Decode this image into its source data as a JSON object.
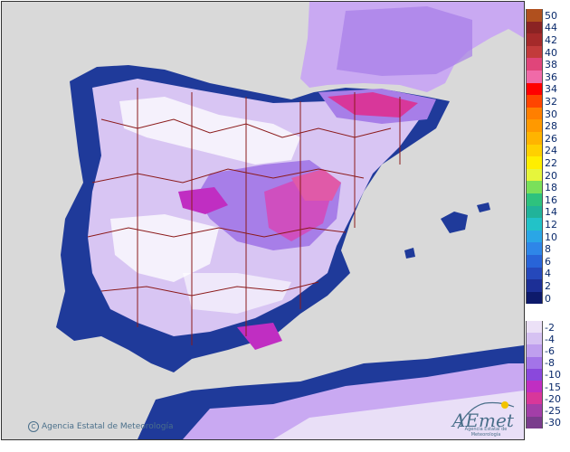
{
  "credit": {
    "text": "Agencia Estatal de Meteorología",
    "icon": "copyright-icon"
  },
  "logo": {
    "wordmark": "AEmet",
    "caption": "Agencia Estatal de Meteorología"
  },
  "legend_upper": [
    {
      "label": "50",
      "color": "#b0501e"
    },
    {
      "label": "44",
      "color": "#8b2323"
    },
    {
      "label": "42",
      "color": "#a52a2a"
    },
    {
      "label": "40",
      "color": "#c23b3b"
    },
    {
      "label": "38",
      "color": "#e0457a"
    },
    {
      "label": "36",
      "color": "#f06aa8"
    },
    {
      "label": "34",
      "color": "#ff0000"
    },
    {
      "label": "32",
      "color": "#ff4500"
    },
    {
      "label": "30",
      "color": "#ff7f00"
    },
    {
      "label": "28",
      "color": "#ff9900"
    },
    {
      "label": "26",
      "color": "#ffb400"
    },
    {
      "label": "24",
      "color": "#ffd000"
    },
    {
      "label": "22",
      "color": "#ffee00"
    },
    {
      "label": "20",
      "color": "#e6f53c"
    },
    {
      "label": "18",
      "color": "#7ae05a"
    },
    {
      "label": "16",
      "color": "#2ec27e"
    },
    {
      "label": "14",
      "color": "#21b39a"
    },
    {
      "label": "12",
      "color": "#22c2c8"
    },
    {
      "label": "10",
      "color": "#2aa6e6"
    },
    {
      "label": "8",
      "color": "#2e86e8"
    },
    {
      "label": "6",
      "color": "#2864d8"
    },
    {
      "label": "4",
      "color": "#2548bb"
    },
    {
      "label": "2",
      "color": "#1c2f96"
    },
    {
      "label": "0",
      "color": "#0d1a6b"
    }
  ],
  "legend_lower": [
    {
      "label": "-2",
      "color": "#ece1f7"
    },
    {
      "label": "-4",
      "color": "#d6c2f2"
    },
    {
      "label": "-6",
      "color": "#bf9fee"
    },
    {
      "label": "-8",
      "color": "#a374e8"
    },
    {
      "label": "-10",
      "color": "#8a48dc"
    },
    {
      "label": "-15",
      "color": "#c02ec2"
    },
    {
      "label": "-20",
      "color": "#d8379a"
    },
    {
      "label": "-25",
      "color": "#a33ea8"
    },
    {
      "label": "-30",
      "color": "#7a3c8c"
    }
  ]
}
